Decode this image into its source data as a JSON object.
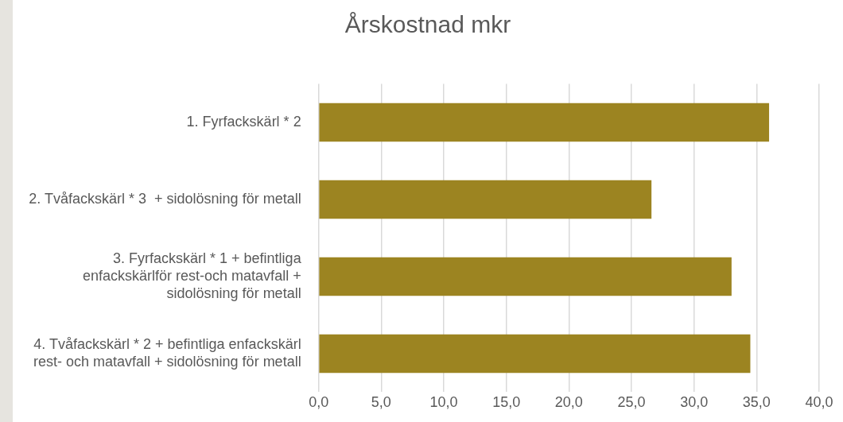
{
  "chart_data": {
    "type": "bar",
    "orientation": "horizontal",
    "title": "Årskostnad mkr",
    "categories": [
      "1. Fyrfackskärl * 2",
      "2. Tvåfackskärl * 3  + sidolösning för metall",
      "3. Fyrfackskärl * 1 + befintliga\nenfackskärlför rest-och matavfall +\nsidolösning för metall",
      "4. Tvåfackskärl * 2 + befintliga enfackskärl\nrest- och matavfall + sidolösning för metall"
    ],
    "values": [
      36.0,
      26.6,
      33.0,
      34.5
    ],
    "color": "#9c8421",
    "xlim": [
      0,
      40
    ],
    "xticks": [
      {
        "value": 0,
        "label": "0,0"
      },
      {
        "value": 5,
        "label": "5,0"
      },
      {
        "value": 10,
        "label": "10,0"
      },
      {
        "value": 15,
        "label": "15,0"
      },
      {
        "value": 20,
        "label": "20,0"
      },
      {
        "value": 25,
        "label": "25,0"
      },
      {
        "value": 30,
        "label": "30,0"
      },
      {
        "value": 35,
        "label": "35,0"
      },
      {
        "value": 40,
        "label": "40,0"
      }
    ],
    "grid": "x",
    "legend": false
  }
}
